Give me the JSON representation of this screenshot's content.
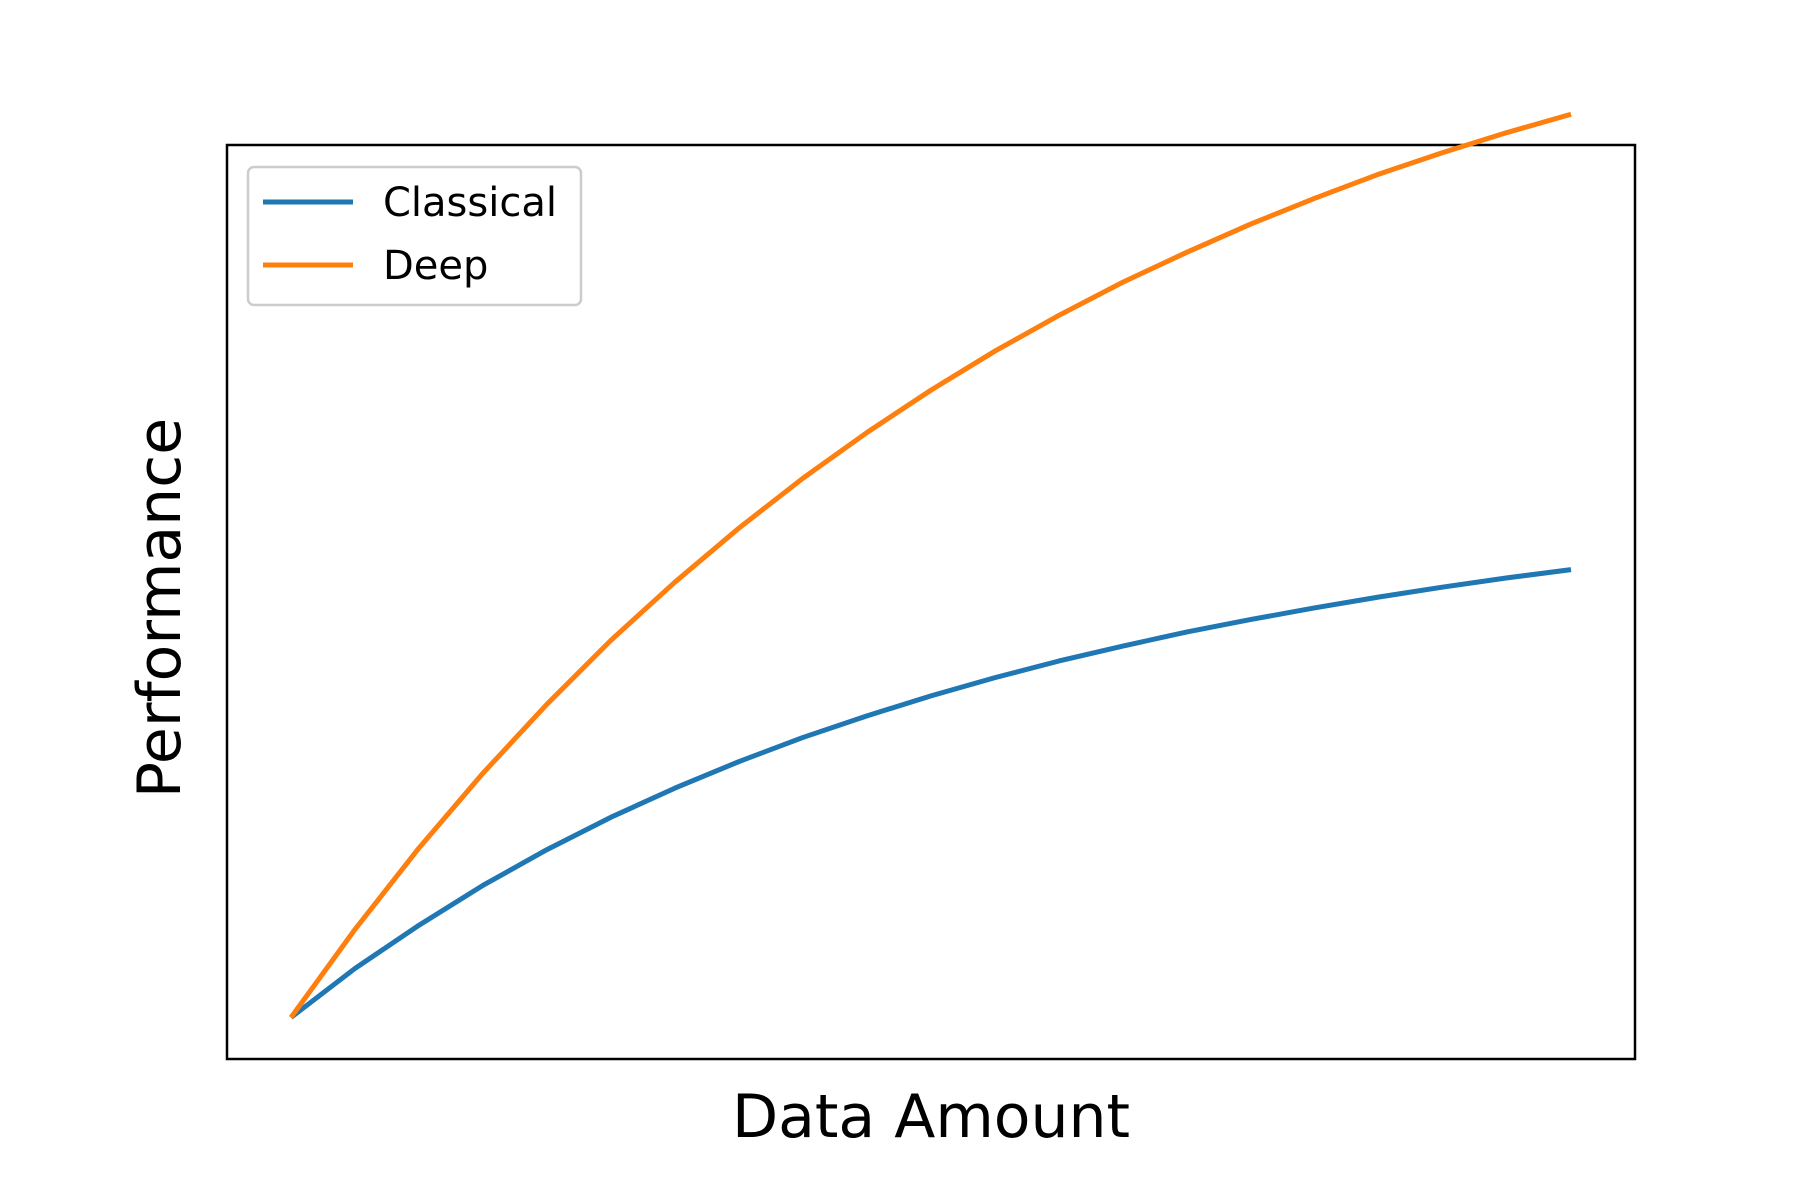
{
  "chart_data": {
    "type": "line",
    "title": "",
    "xlabel": "Data Amount",
    "ylabel": "Performance",
    "xlim": [
      -0.05,
      1.05
    ],
    "ylim": [
      -0.05,
      1.05
    ],
    "xticks": [],
    "yticks": [],
    "grid": false,
    "legend_position": "top-left",
    "x": [
      0,
      0.05,
      0.1,
      0.15,
      0.2,
      0.25,
      0.3,
      0.35,
      0.4,
      0.45,
      0.5,
      0.55,
      0.6,
      0.65,
      0.7,
      0.75,
      0.8,
      0.85,
      0.9,
      0.95,
      1.0
    ],
    "series": [
      {
        "name": "Classical",
        "color": "#1f77b4",
        "values": [
          0.0,
          0.059,
          0.111,
          0.159,
          0.202,
          0.241,
          0.276,
          0.308,
          0.337,
          0.363,
          0.387,
          0.409,
          0.429,
          0.447,
          0.464,
          0.479,
          0.493,
          0.506,
          0.518,
          0.529,
          0.539
        ]
      },
      {
        "name": "Deep",
        "color": "#ff7f0e",
        "values": [
          0.0,
          0.106,
          0.204,
          0.294,
          0.377,
          0.454,
          0.524,
          0.589,
          0.649,
          0.704,
          0.755,
          0.802,
          0.845,
          0.885,
          0.921,
          0.955,
          0.986,
          1.015,
          1.041,
          1.065,
          1.087
        ]
      }
    ]
  }
}
